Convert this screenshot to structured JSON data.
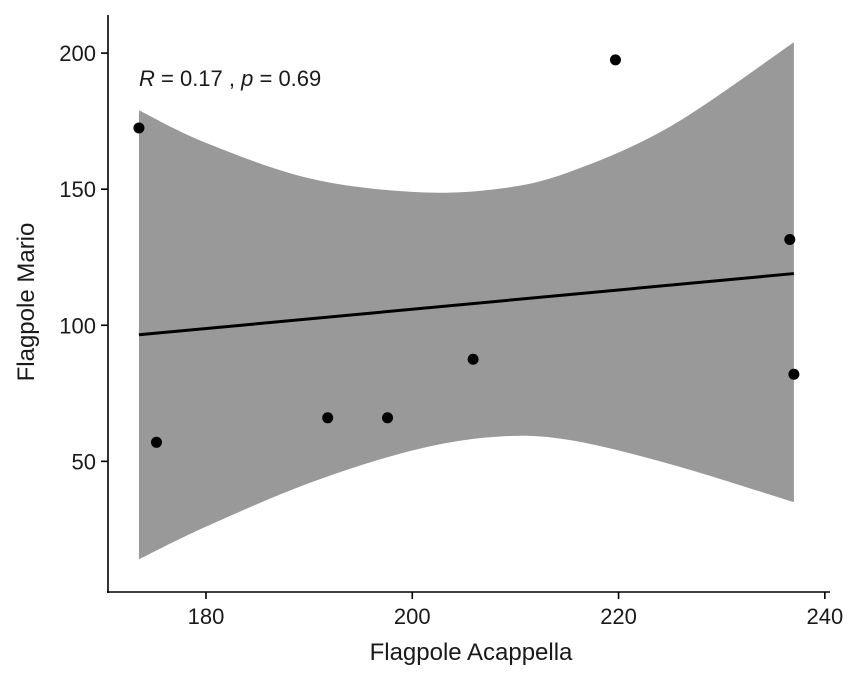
{
  "chart_data": {
    "type": "scatter",
    "xlabel": "Flagpole Acappella",
    "ylabel": "Flagpole Mario",
    "xlim": [
      170.5,
      240.5
    ],
    "ylim": [
      2,
      214
    ],
    "xticks": [
      180,
      200,
      220,
      240
    ],
    "yticks": [
      50,
      100,
      150,
      200
    ],
    "grid": false,
    "annotation": {
      "r_symbol": "R",
      "r_text": " = 0.17 , ",
      "p_symbol": "p",
      "p_text": " = 0.69"
    },
    "points": [
      {
        "x": 173.5,
        "y": 172.5
      },
      {
        "x": 175.2,
        "y": 57
      },
      {
        "x": 191.8,
        "y": 66
      },
      {
        "x": 197.6,
        "y": 66
      },
      {
        "x": 205.9,
        "y": 87.5
      },
      {
        "x": 219.7,
        "y": 197.5
      },
      {
        "x": 236.6,
        "y": 131.5
      },
      {
        "x": 237.0,
        "y": 82
      }
    ],
    "fit_line": {
      "x0": 173.5,
      "y0": 96.5,
      "x1": 237.0,
      "y1": 119
    },
    "confidence_band": {
      "x": [
        173.5,
        180,
        190,
        200,
        208,
        215,
        225,
        237
      ],
      "lower": [
        14,
        26,
        42,
        54,
        59,
        58,
        49,
        35
      ],
      "upper": [
        179,
        167,
        154,
        149,
        150,
        156,
        173,
        204
      ]
    },
    "colors": {
      "band": "#999999",
      "line": "#000000",
      "points": "#000000",
      "axis": "#000000"
    }
  }
}
